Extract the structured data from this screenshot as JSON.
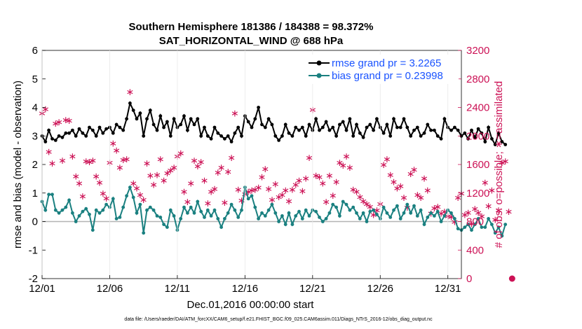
{
  "chart_data": {
    "type": "line",
    "title": "Southern Hemisphere 181386 / 184388 = 98.372%",
    "subtitle": "SAT_HORIZONTAL_WIND @ 688 hPa",
    "xlabel": "Dec.01,2016 00:00:00 start",
    "ylabel": "rmse and bias (model - observation)",
    "y2label": "# of obs: o=possible; ∗=assimilated",
    "footnote": "data file: /Users/raeder/DAI/ATM_forcXX/CAM6_setup/f.e21.FHIST_BGC.f09_025.CAM6assim.011/Diags_NTrS_2016-12/obs_diag_output.nc",
    "xlim": [
      0,
      31
    ],
    "ylim": [
      -2,
      6
    ],
    "y2lim": [
      0,
      3200
    ],
    "x_ticks": [
      {
        "v": 0,
        "label": "12/01"
      },
      {
        "v": 5,
        "label": "12/06"
      },
      {
        "v": 10,
        "label": "12/11"
      },
      {
        "v": 15,
        "label": "12/16"
      },
      {
        "v": 20,
        "label": "12/21"
      },
      {
        "v": 25,
        "label": "12/26"
      },
      {
        "v": 30,
        "label": "12/31"
      }
    ],
    "y_ticks": [
      -2,
      -1,
      0,
      1,
      2,
      3,
      4,
      5,
      6
    ],
    "y2_ticks": [
      0,
      400,
      800,
      1200,
      1600,
      2000,
      2400,
      2800,
      3200
    ],
    "legend": [
      {
        "name": "rmse grand pr = 3.2265",
        "color": "#000000"
      },
      {
        "name": "bias grand pr = 0.23998",
        "color": "#1a8080"
      }
    ],
    "colors": {
      "rmse": "#000000",
      "bias": "#1a8080",
      "obs": "#cc1155",
      "zero_line": "#b3b3b3"
    },
    "series": [
      {
        "name": "rmse",
        "x_start": 0,
        "x_step": 0.25,
        "values": [
          3.0,
          2.8,
          3.2,
          2.9,
          2.85,
          3.0,
          2.95,
          3.1,
          3.1,
          3.2,
          3.0,
          3.25,
          3.1,
          3.0,
          3.3,
          3.2,
          3.0,
          3.3,
          3.1,
          3.25,
          3.3,
          3.1,
          3.4,
          3.3,
          3.2,
          3.6,
          4.15,
          3.9,
          3.6,
          3.8,
          3.0,
          3.6,
          3.9,
          3.4,
          3.2,
          3.7,
          3.3,
          3.5,
          3.0,
          3.6,
          3.3,
          3.4,
          3.7,
          3.2,
          3.6,
          3.4,
          3.6,
          3.0,
          3.3,
          3.0,
          2.9,
          3.3,
          3.1,
          3.0,
          2.9,
          3.0,
          2.8,
          3.1,
          3.3,
          3.0,
          3.7,
          3.5,
          3.3,
          3.6,
          4.0,
          3.4,
          3.3,
          3.6,
          3.4,
          3.0,
          2.85,
          3.0,
          3.4,
          3.1,
          3.0,
          3.3,
          3.2,
          3.3,
          3.0,
          3.4,
          3.2,
          3.6,
          3.2,
          3.3,
          3.5,
          3.2,
          3.3,
          3.0,
          3.4,
          3.5,
          3.2,
          3.6,
          3.0,
          3.4,
          3.1,
          2.95,
          3.3,
          3.4,
          3.2,
          3.6,
          3.3,
          3.1,
          3.4,
          3.0,
          3.6,
          3.3,
          3.3,
          3.6,
          3.3,
          3.0,
          3.2,
          3.3,
          3.0,
          3.1,
          3.4,
          3.2,
          3.2,
          3.0,
          2.9,
          3.6,
          3.3,
          3.2,
          3.3,
          3.2,
          3.0,
          3.1,
          2.9,
          3.2,
          2.95,
          3.25,
          3.1,
          2.8,
          3.3,
          2.9,
          2.7,
          3.1,
          2.8,
          2.7
        ]
      },
      {
        "name": "bias",
        "x_start": 0,
        "x_step": 0.25,
        "values": [
          0.7,
          0.4,
          0.95,
          0.95,
          0.4,
          0.3,
          0.4,
          0.5,
          0.75,
          0.3,
          0.0,
          0.2,
          0.35,
          0.45,
          0.25,
          -0.3,
          0.4,
          0.3,
          0.4,
          0.6,
          0.5,
          0.8,
          0.1,
          0.15,
          0.5,
          0.9,
          1.2,
          0.85,
          0.3,
          0.6,
          -0.4,
          0.4,
          0.5,
          0.4,
          0.2,
          0.15,
          -0.1,
          -0.2,
          0.4,
          0.2,
          -0.3,
          0.1,
          0.5,
          0.3,
          0.5,
          0.3,
          0.7,
          0.35,
          0.15,
          0.4,
          0.2,
          0.4,
          0.1,
          -0.2,
          0.1,
          0.3,
          0.6,
          0.4,
          0.15,
          0.4,
          1.2,
          0.8,
          0.9,
          0.5,
          0.1,
          0.3,
          0.2,
          0.4,
          0.6,
          0.3,
          0.0,
          0.2,
          -0.1,
          0.3,
          -0.1,
          0.2,
          0.35,
          0.1,
          0.4,
          0.2,
          0.4,
          0.35,
          0.15,
          0.0,
          0.1,
          0.3,
          0.6,
          0.5,
          0.2,
          0.7,
          0.6,
          0.4,
          0.5,
          0.3,
          0.1,
          0.3,
          0.0,
          0.35,
          0.4,
          0.25,
          0.1,
          0.5,
          0.3,
          0.15,
          0.4,
          0.55,
          0.1,
          0.3,
          0.6,
          0.3,
          0.55,
          0.2,
          0.4,
          -0.1,
          0.15,
          0.3,
          0.2,
          0.35,
          0.0,
          0.2,
          0.4,
          0.3,
          0.1,
          -0.25,
          -0.3,
          -0.2,
          -0.1,
          -0.3,
          -0.1,
          0.1,
          -0.2,
          -0.2,
          0.1,
          -0.1,
          -0.4,
          -0.2,
          -0.5,
          -0.1
        ]
      },
      {
        "name": "obs assimilated",
        "axis": "right",
        "x_start": 0,
        "x_step": 0.25,
        "values": [
          2320,
          2380,
          1780,
          1620,
          2180,
          2200,
          1660,
          2230,
          2220,
          1720,
          1440,
          1340,
          1160,
          1650,
          1640,
          1660,
          1440,
          1350,
          1200,
          1130,
          1630,
          1900,
          1800,
          1560,
          1670,
          1680,
          2620,
          1340,
          1270,
          1180,
          1110,
          1620,
          1450,
          1320,
          1460,
          1680,
          1380,
          1480,
          1520,
          1560,
          1720,
          1760,
          1220,
          1080,
          1340,
          1660,
          1580,
          1640,
          1380,
          1060,
          1220,
          1260,
          1490,
          1560,
          1070,
          1500,
          1700,
          2320,
          1250,
          1100,
          1190,
          1220,
          1240,
          1250,
          1280,
          1430,
          1540,
          1260,
          1110,
          1330,
          1150,
          1180,
          1240,
          1090,
          1250,
          1320,
          1380,
          1230,
          1410,
          1700,
          2370,
          1450,
          1430,
          1340,
          1080,
          1450,
          1170,
          1360,
          1630,
          1590,
          1720,
          1560,
          1250,
          1220,
          1150,
          1090,
          1050,
          1010,
          900,
          960,
          1050,
          1600,
          1680,
          1460,
          1360,
          1270,
          1300,
          1140,
          1000,
          1470,
          1530,
          1180,
          1140,
          1410,
          1240,
          920,
          990,
          1010,
          920,
          940,
          880,
          870,
          800,
          1140,
          1200,
          900,
          930,
          770,
          980,
          930,
          880,
          1350,
          1020,
          1240,
          830,
          960,
          1630,
          1650,
          940,
          0
        ]
      }
    ]
  }
}
